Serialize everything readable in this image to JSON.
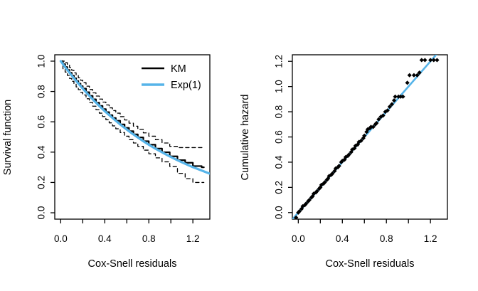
{
  "figure": {
    "background": "#ffffff",
    "description": "Cox-Snell residual diagnostic plots"
  },
  "colors": {
    "curve_black": "#000000",
    "curve_blue": "#56B4E9",
    "axis": "#000000",
    "background": "#ffffff"
  },
  "chart_data": [
    {
      "type": "line",
      "panel": "left",
      "title": "",
      "xlabel": "Cox-Snell residuals",
      "ylabel": "Survival function",
      "xlim": [
        0,
        1.3
      ],
      "ylim": [
        0,
        1.0
      ],
      "grid": false,
      "x_ticks": [
        0,
        0.2,
        0.4,
        0.6,
        0.8,
        1.0,
        1.2
      ],
      "x_tick_labels": [
        "0.0",
        "",
        "0.4",
        "",
        "0.8",
        "",
        "1.2"
      ],
      "y_ticks": [
        0,
        0.2,
        0.4,
        0.6,
        0.8,
        1.0
      ],
      "y_tick_labels": [
        "0.0",
        "0.2",
        "0.4",
        "0.6",
        "0.8",
        "1.0"
      ],
      "legend": [
        {
          "label": "KM",
          "color": "#000000",
          "lwd": 2.5,
          "style": "solid"
        },
        {
          "label": "Exp(1)",
          "color": "#56B4E9",
          "lwd": 3.5,
          "style": "solid"
        }
      ],
      "legend_position": "topright",
      "series": [
        {
          "name": "KM",
          "type": "step",
          "style": "solid",
          "color": "#000000",
          "width": 2.2,
          "x": [
            0.0,
            0.02,
            0.04,
            0.06,
            0.08,
            0.1,
            0.12,
            0.14,
            0.16,
            0.18,
            0.2,
            0.23,
            0.26,
            0.29,
            0.32,
            0.35,
            0.38,
            0.41,
            0.44,
            0.47,
            0.5,
            0.54,
            0.58,
            0.62,
            0.66,
            0.7,
            0.75,
            0.8,
            0.86,
            0.92,
            0.99,
            1.06,
            1.13,
            1.2,
            1.28,
            1.3
          ],
          "y": [
            1.0,
            0.98,
            0.961,
            0.942,
            0.923,
            0.905,
            0.887,
            0.869,
            0.852,
            0.835,
            0.819,
            0.795,
            0.771,
            0.748,
            0.726,
            0.705,
            0.684,
            0.664,
            0.644,
            0.625,
            0.607,
            0.583,
            0.56,
            0.538,
            0.517,
            0.497,
            0.472,
            0.449,
            0.423,
            0.399,
            0.372,
            0.347,
            0.33,
            0.308,
            0.3,
            0.3
          ]
        },
        {
          "name": "KM upper 95% CI",
          "type": "step",
          "style": "dashed",
          "color": "#000000",
          "width": 1.3,
          "x": [
            0.0,
            0.02,
            0.04,
            0.06,
            0.08,
            0.1,
            0.12,
            0.14,
            0.16,
            0.18,
            0.2,
            0.23,
            0.26,
            0.29,
            0.32,
            0.35,
            0.38,
            0.41,
            0.44,
            0.47,
            0.5,
            0.54,
            0.58,
            0.62,
            0.66,
            0.7,
            0.75,
            0.8,
            0.86,
            0.92,
            0.99,
            1.06,
            1.13,
            1.2,
            1.28,
            1.3
          ],
          "y": [
            1.0,
            1.0,
            0.99,
            0.975,
            0.958,
            0.94,
            0.923,
            0.906,
            0.89,
            0.874,
            0.858,
            0.835,
            0.813,
            0.791,
            0.77,
            0.75,
            0.73,
            0.711,
            0.692,
            0.674,
            0.657,
            0.634,
            0.612,
            0.591,
            0.571,
            0.551,
            0.527,
            0.505,
            0.482,
            0.46,
            0.438,
            0.43,
            0.43,
            0.43,
            0.43,
            0.43
          ]
        },
        {
          "name": "KM lower 95% CI",
          "type": "step",
          "style": "dashed",
          "color": "#000000",
          "width": 1.3,
          "x": [
            0.0,
            0.02,
            0.04,
            0.06,
            0.08,
            0.1,
            0.12,
            0.14,
            0.16,
            0.18,
            0.2,
            0.23,
            0.26,
            0.29,
            0.32,
            0.35,
            0.38,
            0.41,
            0.44,
            0.47,
            0.5,
            0.54,
            0.58,
            0.62,
            0.66,
            0.7,
            0.75,
            0.8,
            0.86,
            0.92,
            0.99,
            1.06,
            1.13,
            1.2,
            1.28,
            1.3
          ],
          "y": [
            1.0,
            0.95,
            0.928,
            0.906,
            0.886,
            0.867,
            0.848,
            0.83,
            0.812,
            0.794,
            0.777,
            0.752,
            0.727,
            0.703,
            0.68,
            0.657,
            0.635,
            0.614,
            0.593,
            0.573,
            0.554,
            0.529,
            0.505,
            0.482,
            0.46,
            0.438,
            0.413,
            0.389,
            0.362,
            0.336,
            0.305,
            0.26,
            0.225,
            0.2,
            0.2,
            0.2
          ]
        },
        {
          "name": "Exp(1)",
          "type": "line",
          "style": "solid",
          "color": "#56B4E9",
          "width": 3.2,
          "x": [
            0.0,
            0.05,
            0.1,
            0.15,
            0.2,
            0.25,
            0.3,
            0.35,
            0.4,
            0.45,
            0.5,
            0.55,
            0.6,
            0.65,
            0.7,
            0.75,
            0.8,
            0.85,
            0.9,
            0.95,
            1.0,
            1.05,
            1.1,
            1.15,
            1.2,
            1.25,
            1.3,
            1.35
          ],
          "y": [
            1.0,
            0.951,
            0.905,
            0.861,
            0.819,
            0.779,
            0.741,
            0.705,
            0.67,
            0.638,
            0.607,
            0.577,
            0.549,
            0.522,
            0.497,
            0.472,
            0.449,
            0.427,
            0.407,
            0.387,
            0.368,
            0.35,
            0.333,
            0.317,
            0.301,
            0.287,
            0.273,
            0.259
          ]
        }
      ]
    },
    {
      "type": "scatter",
      "panel": "right",
      "title": "",
      "xlabel": "Cox-Snell residuals",
      "ylabel": "Cumulative hazard",
      "xlim": [
        0,
        1.3
      ],
      "ylim": [
        0,
        1.2
      ],
      "grid": false,
      "x_ticks": [
        0,
        0.2,
        0.4,
        0.6,
        0.8,
        1.0,
        1.2
      ],
      "x_tick_labels": [
        "0.0",
        "",
        "0.4",
        "",
        "0.8",
        "",
        "1.2"
      ],
      "y_ticks": [
        0,
        0.2,
        0.4,
        0.6,
        0.8,
        1.0,
        1.2
      ],
      "y_tick_labels": [
        "0.0",
        "0.2",
        "0.4",
        "0.6",
        "0.8",
        "1.0",
        "1.2"
      ],
      "point_shape": "diamond",
      "point_color": "#000000",
      "reference_line": {
        "intercept": 0,
        "slope": 1,
        "color": "#56B4E9",
        "width": 2.6
      },
      "points": [
        [
          -0.02,
          -0.04
        ],
        [
          0.0,
          0.0
        ],
        [
          0.01,
          0.01
        ],
        [
          0.03,
          0.03
        ],
        [
          0.04,
          0.05
        ],
        [
          0.06,
          0.06
        ],
        [
          0.07,
          0.07
        ],
        [
          0.09,
          0.09
        ],
        [
          0.1,
          0.1
        ],
        [
          0.12,
          0.12
        ],
        [
          0.13,
          0.13
        ],
        [
          0.14,
          0.15
        ],
        [
          0.16,
          0.16
        ],
        [
          0.17,
          0.17
        ],
        [
          0.19,
          0.19
        ],
        [
          0.2,
          0.2
        ],
        [
          0.21,
          0.22
        ],
        [
          0.23,
          0.23
        ],
        [
          0.24,
          0.24
        ],
        [
          0.26,
          0.26
        ],
        [
          0.27,
          0.27
        ],
        [
          0.28,
          0.29
        ],
        [
          0.3,
          0.3
        ],
        [
          0.31,
          0.31
        ],
        [
          0.33,
          0.33
        ],
        [
          0.34,
          0.35
        ],
        [
          0.36,
          0.36
        ],
        [
          0.37,
          0.37
        ],
        [
          0.39,
          0.4
        ],
        [
          0.4,
          0.41
        ],
        [
          0.42,
          0.42
        ],
        [
          0.43,
          0.44
        ],
        [
          0.45,
          0.45
        ],
        [
          0.46,
          0.46
        ],
        [
          0.48,
          0.48
        ],
        [
          0.49,
          0.5
        ],
        [
          0.51,
          0.51
        ],
        [
          0.52,
          0.53
        ],
        [
          0.54,
          0.54
        ],
        [
          0.55,
          0.56
        ],
        [
          0.57,
          0.57
        ],
        [
          0.59,
          0.59
        ],
        [
          0.6,
          0.61
        ],
        [
          0.62,
          0.64
        ],
        [
          0.63,
          0.66
        ],
        [
          0.65,
          0.67
        ],
        [
          0.66,
          0.68
        ],
        [
          0.68,
          0.68
        ],
        [
          0.7,
          0.7
        ],
        [
          0.71,
          0.71
        ],
        [
          0.73,
          0.74
        ],
        [
          0.75,
          0.76
        ],
        [
          0.77,
          0.77
        ],
        [
          0.79,
          0.8
        ],
        [
          0.81,
          0.81
        ],
        [
          0.83,
          0.84
        ],
        [
          0.85,
          0.86
        ],
        [
          0.87,
          0.89
        ],
        [
          0.88,
          0.92
        ],
        [
          0.91,
          0.92
        ],
        [
          0.93,
          0.92
        ],
        [
          0.95,
          0.92
        ],
        [
          0.99,
          1.03
        ],
        [
          1.01,
          1.09
        ],
        [
          1.05,
          1.09
        ],
        [
          1.08,
          1.09
        ],
        [
          1.1,
          1.11
        ],
        [
          1.12,
          1.21
        ],
        [
          1.15,
          1.21
        ],
        [
          1.2,
          1.21
        ],
        [
          1.23,
          1.21
        ],
        [
          1.26,
          1.21
        ]
      ]
    }
  ]
}
